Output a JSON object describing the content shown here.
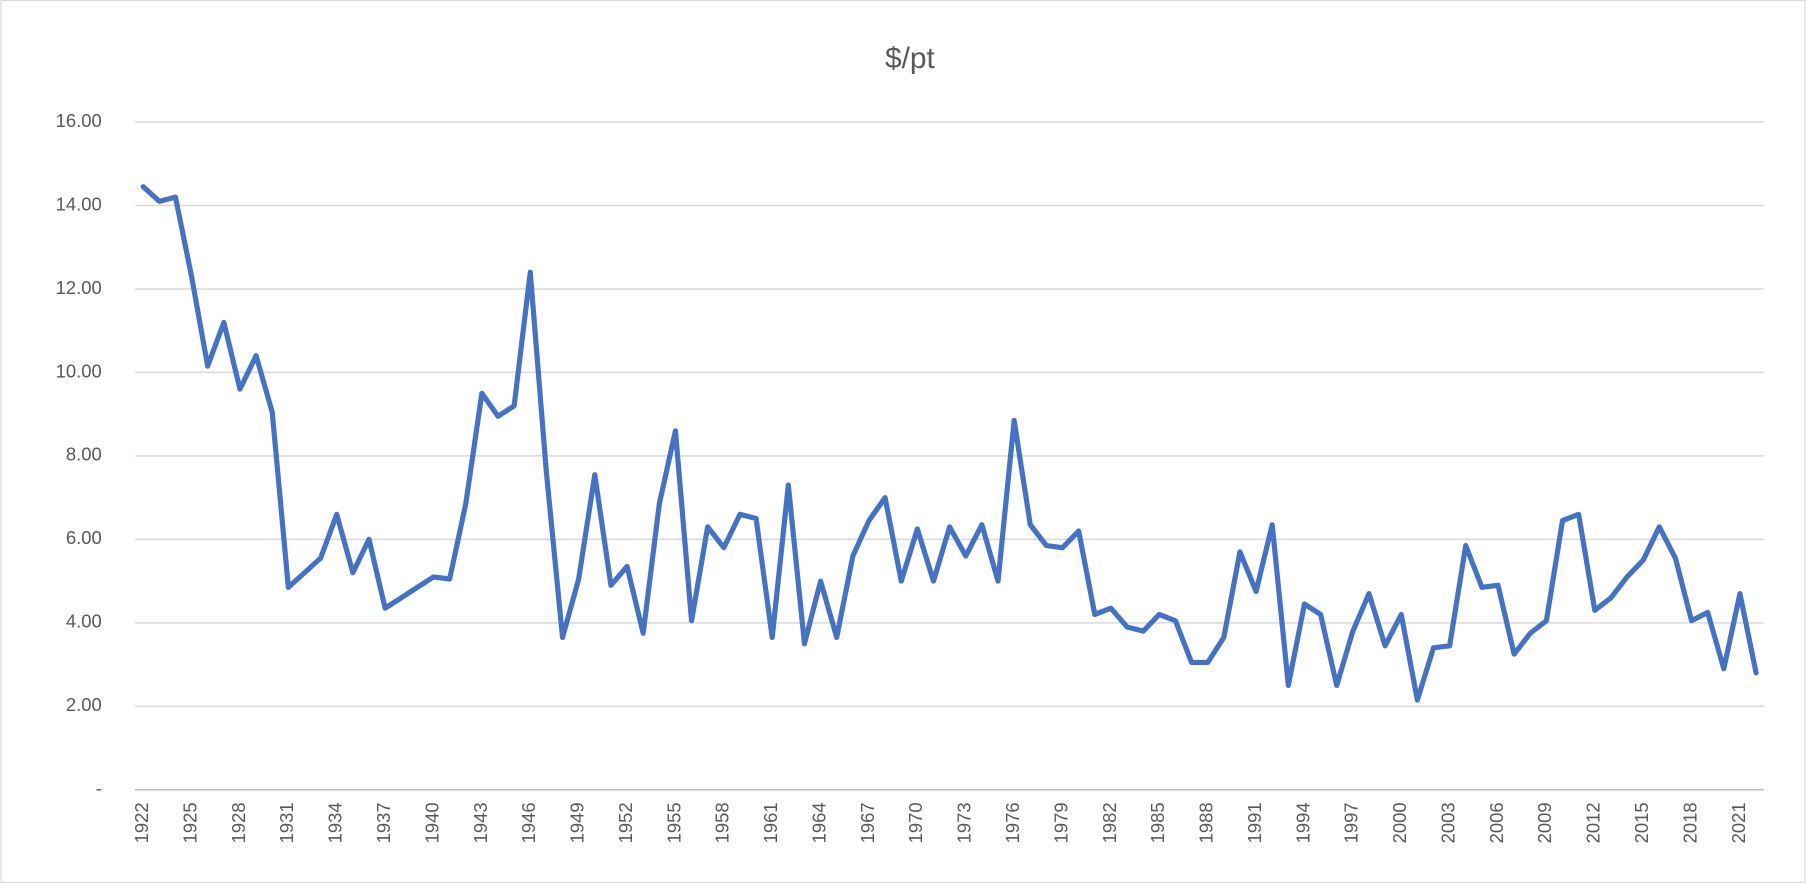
{
  "chart_data": {
    "type": "line",
    "title": "$/pt",
    "categories": [
      "1922",
      null,
      null,
      "1925",
      null,
      null,
      "1928",
      null,
      null,
      "1931",
      null,
      null,
      "1934",
      null,
      null,
      "1937",
      null,
      null,
      "1940",
      null,
      null,
      "1943",
      null,
      null,
      "1946",
      null,
      null,
      "1949",
      null,
      null,
      "1952",
      null,
      null,
      "1955",
      null,
      null,
      "1958",
      null,
      null,
      "1961",
      null,
      null,
      "1964",
      null,
      null,
      "1967",
      null,
      null,
      "1970",
      null,
      null,
      "1973",
      null,
      null,
      "1976",
      null,
      null,
      "1979",
      null,
      null,
      "1982",
      null,
      null,
      "1985",
      null,
      null,
      "1988",
      null,
      null,
      "1991",
      null,
      null,
      "1994",
      null,
      null,
      "1997",
      null,
      null,
      "2000",
      null,
      null,
      "2003",
      null,
      null,
      "2006",
      null,
      null,
      "2009",
      null,
      null,
      "2012",
      null,
      null,
      "2015",
      null,
      null,
      "2018",
      null,
      null,
      "2021",
      null
    ],
    "series": [
      {
        "color": "#4472c4",
        "values": [
          14.45,
          14.1,
          14.2,
          12.3,
          10.15,
          11.2,
          9.6,
          10.4,
          9.05,
          4.85,
          5.2,
          5.55,
          6.6,
          5.2,
          6.0,
          4.35,
          4.6,
          4.85,
          5.1,
          5.05,
          6.85,
          9.5,
          8.95,
          9.2,
          12.4,
          7.6,
          3.65,
          5.05,
          7.55,
          4.9,
          5.35,
          3.75,
          6.85,
          8.6,
          4.05,
          6.3,
          5.8,
          6.6,
          6.5,
          3.65,
          7.3,
          3.5,
          5.0,
          3.65,
          5.6,
          6.45,
          7.0,
          5.0,
          6.25,
          5.0,
          6.3,
          5.6,
          6.35,
          5.0,
          8.85,
          6.35,
          5.85,
          5.8,
          6.2,
          4.2,
          4.35,
          3.9,
          3.8,
          4.2,
          4.05,
          3.05,
          3.05,
          3.65,
          5.7,
          4.75,
          6.35,
          2.5,
          4.45,
          4.2,
          2.5,
          3.8,
          4.7,
          3.45,
          4.2,
          2.15,
          3.4,
          3.45,
          5.85,
          4.85,
          4.9,
          3.25,
          3.75,
          4.05,
          6.45,
          6.6,
          4.3,
          4.6,
          5.1,
          5.5,
          6.3,
          5.55,
          4.05,
          4.25,
          2.9,
          4.7,
          2.8
        ]
      }
    ],
    "ylim": [
      0,
      16
    ],
    "yticks": [
      {
        "value": 0,
        "label": "-"
      },
      {
        "value": 2,
        "label": "2.00"
      },
      {
        "value": 4,
        "label": "4.00"
      },
      {
        "value": 6,
        "label": "6.00"
      },
      {
        "value": 8,
        "label": "8.00"
      },
      {
        "value": 10,
        "label": "10.00"
      },
      {
        "value": 12,
        "label": "12.00"
      },
      {
        "value": 14,
        "label": "14.00"
      },
      {
        "value": 16,
        "label": "16.00"
      }
    ],
    "grid": true
  }
}
